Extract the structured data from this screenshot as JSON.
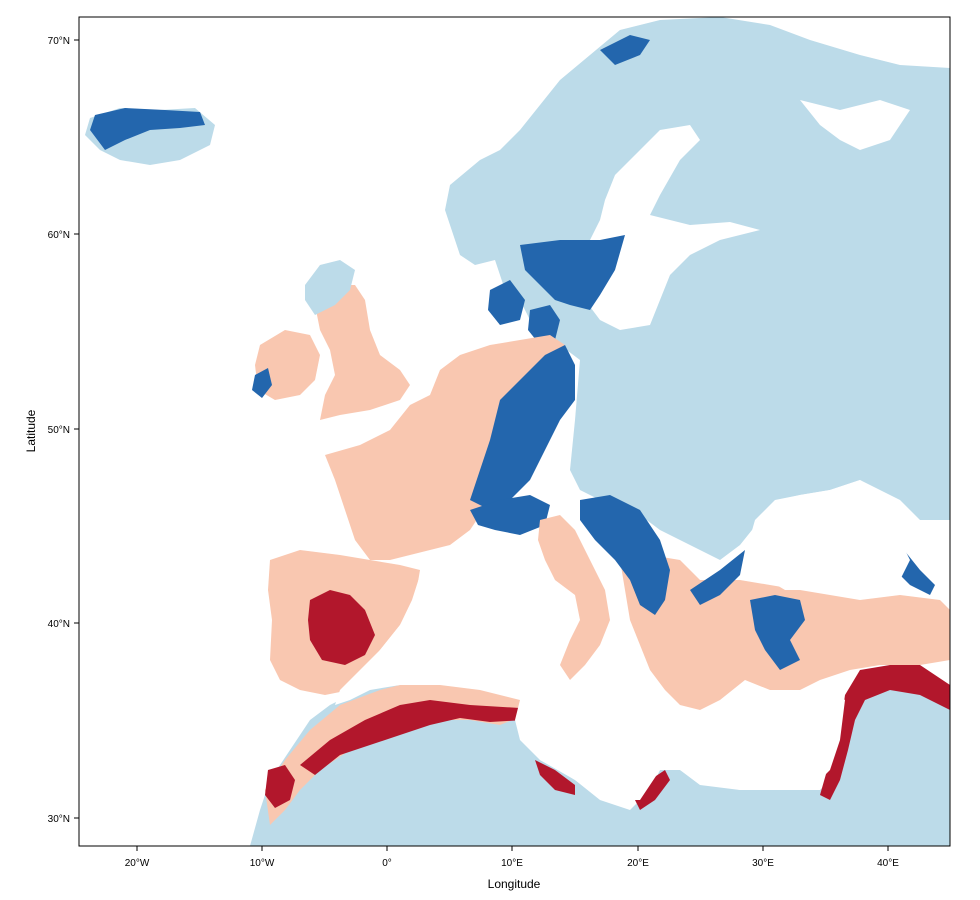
{
  "map": {
    "xlabel": "Longitude",
    "ylabel": "Latitude",
    "x_ticks": [
      "20°W",
      "10°W",
      "0°",
      "10°E",
      "20°E",
      "30°E",
      "40°E"
    ],
    "y_ticks": [
      "30°N",
      "40°N",
      "50°N",
      "60°N",
      "70°N"
    ],
    "lon_range": [
      -24.5,
      45
    ],
    "lat_range": [
      28.5,
      71
    ],
    "colors": {
      "sea": "#ffffff",
      "land_other": "#bcdbe9",
      "dark_blue": "#2366ad",
      "light_salmon": "#f9c7b0",
      "dark_red": "#b2172c",
      "frame": "#000000"
    }
  }
}
